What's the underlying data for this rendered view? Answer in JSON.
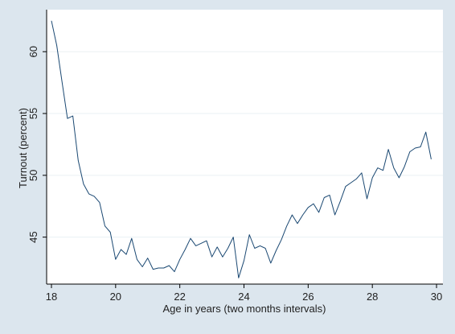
{
  "chart_data": {
    "type": "line",
    "title": "",
    "xlabel": "Age in years (two months intervals)",
    "ylabel": "Turnout (percent)",
    "xlim": [
      17.85,
      30.2
    ],
    "ylim": [
      41.2,
      63.4
    ],
    "x_ticks": [
      18,
      20,
      22,
      24,
      26,
      28,
      30
    ],
    "x_tick_labels": [
      "18",
      "20",
      "22",
      "24",
      "26",
      "28",
      "30"
    ],
    "y_ticks": [
      45,
      50,
      55,
      60
    ],
    "y_tick_labels": [
      "45",
      "50",
      "55",
      "60"
    ],
    "grid": "horizontal",
    "legend": "none",
    "colors": {
      "outer_background": "#dce6ee",
      "plot_background": "#ffffff",
      "grid": "#eaf0f4",
      "line": "#1a4872",
      "axis": "#000000"
    },
    "series": [
      {
        "x": [
          18.0,
          18.1667,
          18.3333,
          18.5,
          18.6667,
          18.8333,
          19.0,
          19.1667,
          19.3333,
          19.5,
          19.6667,
          19.8333,
          20.0,
          20.1667,
          20.3333,
          20.5,
          20.6667,
          20.8333,
          21.0,
          21.1667,
          21.3333,
          21.5,
          21.6667,
          21.8333,
          22.0,
          22.1667,
          22.3333,
          22.5,
          22.6667,
          22.8333,
          23.0,
          23.1667,
          23.3333,
          23.5,
          23.6667,
          23.8333,
          24.0,
          24.1667,
          24.3333,
          24.5,
          24.6667,
          24.8333,
          25.0,
          25.1667,
          25.3333,
          25.5,
          25.6667,
          25.8333,
          26.0,
          26.1667,
          26.3333,
          26.5,
          26.6667,
          26.8333,
          27.0,
          27.1667,
          27.3333,
          27.5,
          27.6667,
          27.8333,
          28.0,
          28.1667,
          28.3333,
          28.5,
          28.6667,
          28.8333,
          29.0,
          29.1667,
          29.3333,
          29.5,
          29.6667,
          29.8333
        ],
        "values": [
          62.5,
          60.5,
          57.5,
          54.6,
          54.8,
          51.2,
          49.3,
          48.5,
          48.3,
          47.8,
          45.9,
          45.4,
          43.2,
          44.0,
          43.6,
          44.9,
          43.2,
          42.6,
          43.3,
          42.4,
          42.5,
          42.5,
          42.7,
          42.2,
          43.2,
          44.0,
          44.9,
          44.3,
          44.5,
          44.7,
          43.4,
          44.2,
          43.4,
          44.1,
          45.0,
          41.7,
          43.1,
          45.2,
          44.1,
          44.3,
          44.1,
          42.9,
          43.9,
          44.8,
          45.9,
          46.8,
          46.1,
          46.8,
          47.4,
          47.7,
          47.0,
          48.2,
          48.4,
          46.8,
          47.9,
          49.1,
          49.4,
          49.7,
          50.2,
          48.1,
          49.8,
          50.6,
          50.4,
          52.1,
          50.6,
          49.8,
          50.7,
          51.9,
          52.2,
          52.3,
          53.5,
          51.3
        ]
      }
    ]
  }
}
